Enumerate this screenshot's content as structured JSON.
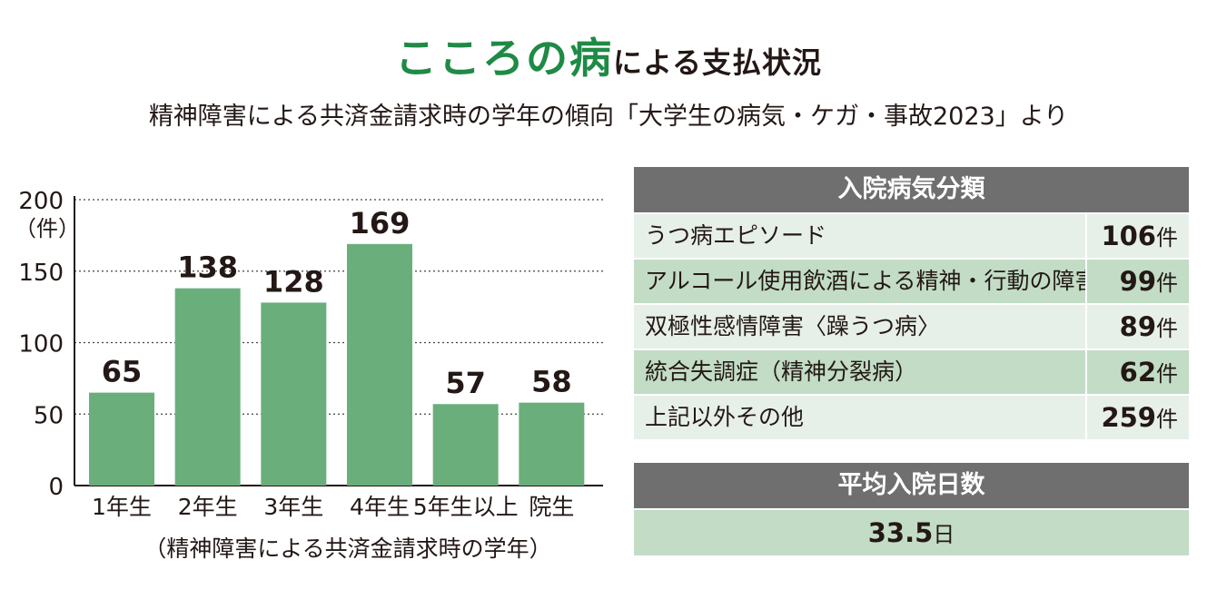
{
  "header": {
    "title_accent": "こころの病",
    "title_rest": "による支払状況",
    "subtitle": "精神障害による共済金請求時の学年の傾向「大学生の病気・ケガ・事故2023」より"
  },
  "colors": {
    "accent_green": "#1f8a46",
    "bar_green": "#6aaf7b",
    "header_gray": "#6f6f6f",
    "row_light": "#e7f0e8",
    "row_dark": "#c2dcc5"
  },
  "chart_data": {
    "type": "bar",
    "categories": [
      "1年生",
      "2年生",
      "3年生",
      "4年生",
      "5年生以上",
      "院生"
    ],
    "values": [
      65,
      138,
      128,
      169,
      57,
      58
    ],
    "data_labels": [
      "65",
      "138",
      "128",
      "169",
      "57",
      "58"
    ],
    "y_ticks": [
      0,
      50,
      100,
      150,
      200
    ],
    "y_tick_labels": [
      "0",
      "50",
      "100",
      "150",
      "200"
    ],
    "ylim": [
      0,
      200
    ],
    "ylabel": "（件）",
    "xlabel": "（精神障害による共済金請求時の学年）",
    "grid": true
  },
  "inpatient_table": {
    "title": "入院病気分類",
    "rows": [
      {
        "name": "うつ病エピソード",
        "value": "106",
        "unit": "件"
      },
      {
        "name": "アルコール使用飲酒による精神・行動の障害",
        "value": "99",
        "unit": "件"
      },
      {
        "name": "双極性感情障害〈躁うつ病〉",
        "value": "89",
        "unit": "件"
      },
      {
        "name": "統合失調症（精神分裂病）",
        "value": "62",
        "unit": "件"
      },
      {
        "name": "上記以外その他",
        "value": "259",
        "unit": "件"
      }
    ]
  },
  "average_stay": {
    "title": "平均入院日数",
    "value": "33.5",
    "unit": "日"
  }
}
